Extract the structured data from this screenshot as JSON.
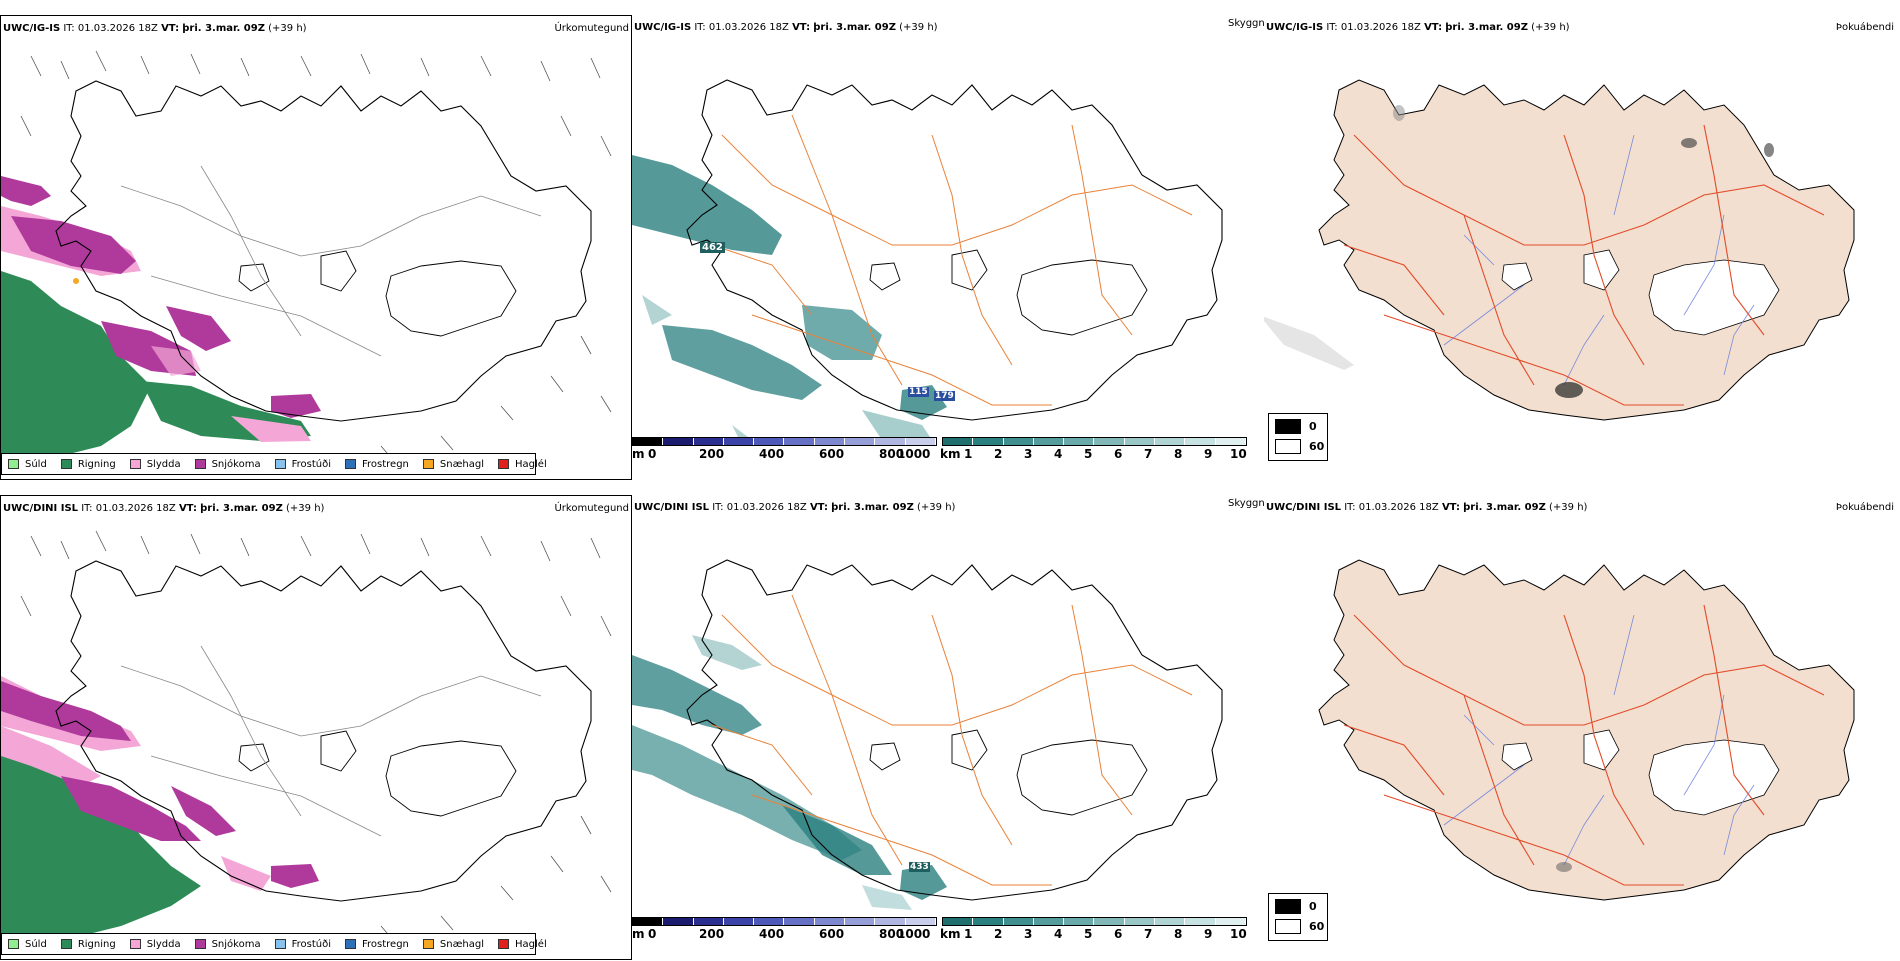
{
  "rows": [
    {
      "model": "UWC/IG-IS",
      "it_label": "IT:",
      "it_value": "01.03.2026 18Z",
      "vt_label": "VT:",
      "vt_value": "þri. 3.mar. 09Z",
      "lead": "(+39 h)",
      "peak_labels": [
        "462",
        "115",
        "179"
      ]
    },
    {
      "model": "UWC/DINI ISL",
      "it_label": "IT:",
      "it_value": "01.03.2026 18Z",
      "vt_label": "VT:",
      "vt_value": "þri. 3.mar. 09Z",
      "lead": "(+39 h)",
      "peak_labels": [
        "433"
      ]
    }
  ],
  "panels": {
    "precip_type": "Úrkomutegund",
    "visibility": "Skyggni",
    "fog": "Þokuábendi"
  },
  "precip_legend": [
    {
      "label": "Súld",
      "color": "#90ee90"
    },
    {
      "label": "Rigning",
      "color": "#2e8b57"
    },
    {
      "label": "Slydda",
      "color": "#f4a6d7"
    },
    {
      "label": "Snjókoma",
      "color": "#b03a9c"
    },
    {
      "label": "Frostúði",
      "color": "#87c1ee"
    },
    {
      "label": "Frostregn",
      "color": "#2f6fba"
    },
    {
      "label": "Snæhagl",
      "color": "#f5a623"
    },
    {
      "label": "Haglél",
      "color": "#e02020"
    }
  ],
  "cloudbase_scale": {
    "unit": "m",
    "ticks": [
      "0",
      "200",
      "400",
      "600",
      "800",
      "1000"
    ],
    "colors": [
      "#000000",
      "#1a1a6e",
      "#2a2f8f",
      "#3b43a8",
      "#4e58b8",
      "#6670c4",
      "#7e88ce",
      "#979fd8",
      "#b0b6e2",
      "#c9cdec"
    ]
  },
  "visibility_scale": {
    "unit": "km",
    "ticks": [
      "1",
      "2",
      "3",
      "4",
      "5",
      "6",
      "7",
      "8",
      "9",
      "10"
    ],
    "colors": [
      "#1f6f6f",
      "#2a7f7f",
      "#3f8f8f",
      "#559d9d",
      "#6baaaa",
      "#82b8b8",
      "#99c6c6",
      "#b0d4d4",
      "#c7e2e2",
      "#e0f0f0"
    ]
  },
  "fog_legend": [
    {
      "label": "0",
      "color": "#000000"
    },
    {
      "label": "60",
      "color": "#ffffff"
    }
  ]
}
